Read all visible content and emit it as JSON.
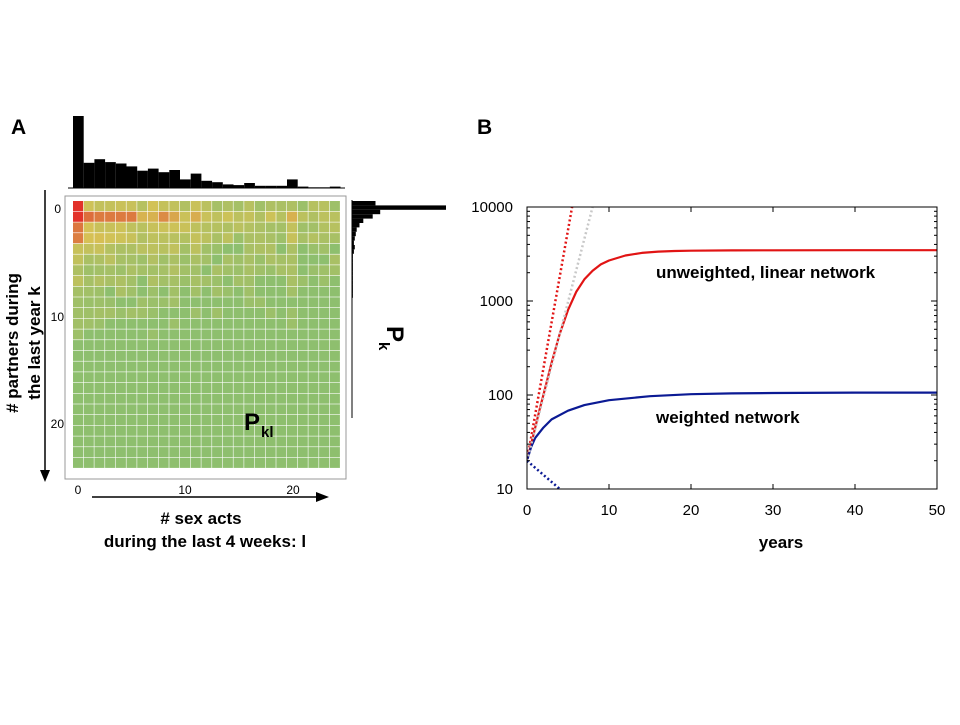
{
  "panels": {
    "a": {
      "letter": "A"
    },
    "b": {
      "letter": "B"
    }
  },
  "colors": {
    "heat_low": "#8ebf6e",
    "heat_mid": "#d6c255",
    "heat_high": "#e2322a",
    "hist": "#000000",
    "unweighted": "#e11414",
    "weighted": "#0b1a94",
    "gray_dotted": "#c8c8c8"
  },
  "chart_data": [
    {
      "type": "heatmap",
      "panel": "A",
      "title": "",
      "matrix_label": "P",
      "matrix_label_sub": "kl",
      "xlabel_line1": "# sex acts",
      "xlabel_line2": "during the last 4 weeks: l",
      "ylabel_line1": "# partners during",
      "ylabel_line2": "the last year k",
      "x_ticks": [
        0,
        10,
        20
      ],
      "y_ticks": [
        0,
        10,
        20
      ],
      "x_range": [
        0,
        24
      ],
      "y_range": [
        0,
        24
      ],
      "marginal_top": {
        "label": "",
        "values": [
          1.0,
          0.35,
          0.4,
          0.36,
          0.34,
          0.3,
          0.24,
          0.27,
          0.22,
          0.25,
          0.12,
          0.2,
          0.1,
          0.08,
          0.05,
          0.04,
          0.07,
          0.03,
          0.03,
          0.03,
          0.12,
          0.02,
          0.01,
          0.01,
          0.02
        ]
      },
      "marginal_right": {
        "label": "P",
        "label_sub": "k",
        "values": [
          0.25,
          1.0,
          0.3,
          0.22,
          0.12,
          0.08,
          0.05,
          0.04,
          0.03,
          0.02,
          0.03,
          0.02,
          0.01,
          0.01,
          0.01,
          0.01,
          0.01,
          0.01,
          0.01,
          0.01,
          0.01,
          0.01,
          0.0,
          0.0,
          0.0
        ]
      }
    },
    {
      "type": "line",
      "panel": "B",
      "xlabel": "years",
      "ylabel": "",
      "xlim": [
        0,
        50
      ],
      "ylim": [
        10,
        10000
      ],
      "yscale": "log",
      "x_ticks": [
        0,
        10,
        20,
        30,
        40,
        50
      ],
      "y_ticks": [
        10,
        100,
        1000,
        10000
      ],
      "y_tick_labels": [
        "10",
        "100",
        "1000",
        "10000"
      ],
      "annotations": [
        "unweighted, linear network",
        "weighted network"
      ],
      "series": [
        {
          "name": "unweighted, linear network",
          "style": "solid",
          "color": "#e11414",
          "x": [
            0,
            0.5,
            1,
            1.5,
            2,
            3,
            4,
            5,
            6,
            7,
            8,
            9,
            10,
            12,
            14,
            16,
            18,
            20,
            25,
            30,
            40,
            50
          ],
          "y": [
            20,
            30,
            45,
            68,
            100,
            220,
            450,
            800,
            1250,
            1700,
            2100,
            2450,
            2700,
            3050,
            3250,
            3350,
            3400,
            3430,
            3450,
            3460,
            3470,
            3470
          ]
        },
        {
          "name": "weighted network",
          "style": "solid",
          "color": "#0b1a94",
          "x": [
            0,
            0.5,
            1,
            2,
            3,
            5,
            7,
            10,
            15,
            20,
            25,
            30,
            40,
            50
          ],
          "y": [
            20,
            28,
            35,
            45,
            55,
            68,
            78,
            88,
            97,
            102,
            104,
            105,
            106,
            106
          ]
        },
        {
          "name": "unweighted exponential",
          "style": "dotted",
          "color": "#e11414",
          "x": [
            0,
            5.5
          ],
          "y": [
            20,
            10000
          ]
        },
        {
          "name": "reference exponential",
          "style": "dotted",
          "color": "#c8c8c8",
          "x": [
            0,
            8
          ],
          "y": [
            20,
            10000
          ]
        },
        {
          "name": "weighted exponential",
          "style": "dotted",
          "color": "#0b1a94",
          "x": [
            0,
            4
          ],
          "y": [
            20,
            10
          ]
        }
      ]
    }
  ]
}
